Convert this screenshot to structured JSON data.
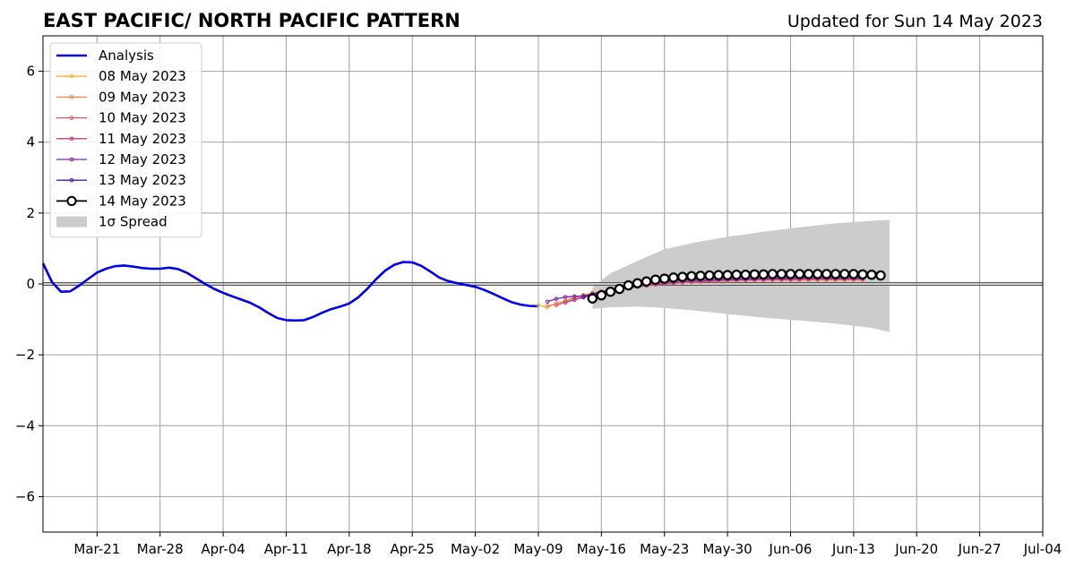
{
  "chart_data": {
    "type": "line",
    "title": "EAST PACIFIC/ NORTH PACIFIC PATTERN",
    "subtitle": "Updated for Sun 14 May 2023",
    "xlabel": "",
    "ylabel": "",
    "x_axis": {
      "start": "2023-03-15",
      "end": "2023-07-04",
      "ticks": [
        "2023-03-21",
        "2023-03-28",
        "2023-04-04",
        "2023-04-11",
        "2023-04-18",
        "2023-04-25",
        "2023-05-02",
        "2023-05-09",
        "2023-05-16",
        "2023-05-23",
        "2023-05-30",
        "2023-06-06",
        "2023-06-13",
        "2023-06-20",
        "2023-06-27",
        "2023-07-04"
      ],
      "tick_labels": [
        "Mar-21",
        "Mar-28",
        "Apr-04",
        "Apr-11",
        "Apr-18",
        "Apr-25",
        "May-02",
        "May-09",
        "May-16",
        "May-23",
        "May-30",
        "Jun-06",
        "Jun-13",
        "Jun-20",
        "Jun-27",
        "Jul-04"
      ]
    },
    "y_axis": {
      "range": [
        -7,
        7
      ],
      "ticks": [
        -6,
        -4,
        -2,
        0,
        2,
        4,
        6
      ],
      "tick_labels": [
        "−6",
        "−4",
        "−2",
        "0",
        "2",
        "4",
        "6"
      ]
    },
    "grid": true,
    "legend_placement": "top-left",
    "analysis": {
      "name": "Analysis",
      "color": "#0000ee",
      "points": [
        [
          "2023-03-15",
          0.58
        ],
        [
          "2023-03-16",
          0.05
        ],
        [
          "2023-03-17",
          -0.22
        ],
        [
          "2023-03-18",
          -0.21
        ],
        [
          "2023-03-19",
          -0.05
        ],
        [
          "2023-03-20",
          0.14
        ],
        [
          "2023-03-21",
          0.32
        ],
        [
          "2023-03-22",
          0.43
        ],
        [
          "2023-03-23",
          0.5
        ],
        [
          "2023-03-24",
          0.52
        ],
        [
          "2023-03-25",
          0.49
        ],
        [
          "2023-03-26",
          0.45
        ],
        [
          "2023-03-27",
          0.43
        ],
        [
          "2023-03-28",
          0.43
        ],
        [
          "2023-03-29",
          0.46
        ],
        [
          "2023-03-30",
          0.42
        ],
        [
          "2023-03-31",
          0.31
        ],
        [
          "2023-04-01",
          0.16
        ],
        [
          "2023-04-02",
          0.0
        ],
        [
          "2023-04-03",
          -0.14
        ],
        [
          "2023-04-04",
          -0.25
        ],
        [
          "2023-04-05",
          -0.35
        ],
        [
          "2023-04-06",
          -0.44
        ],
        [
          "2023-04-07",
          -0.53
        ],
        [
          "2023-04-08",
          -0.66
        ],
        [
          "2023-04-09",
          -0.82
        ],
        [
          "2023-04-10",
          -0.96
        ],
        [
          "2023-04-11",
          -1.02
        ],
        [
          "2023-04-12",
          -1.03
        ],
        [
          "2023-04-13",
          -1.02
        ],
        [
          "2023-04-14",
          -0.93
        ],
        [
          "2023-04-15",
          -0.81
        ],
        [
          "2023-04-16",
          -0.71
        ],
        [
          "2023-04-17",
          -0.64
        ],
        [
          "2023-04-18",
          -0.55
        ],
        [
          "2023-04-19",
          -0.38
        ],
        [
          "2023-04-20",
          -0.14
        ],
        [
          "2023-04-21",
          0.14
        ],
        [
          "2023-04-22",
          0.38
        ],
        [
          "2023-04-23",
          0.54
        ],
        [
          "2023-04-24",
          0.62
        ],
        [
          "2023-04-25",
          0.61
        ],
        [
          "2023-04-26",
          0.51
        ],
        [
          "2023-04-27",
          0.35
        ],
        [
          "2023-04-28",
          0.18
        ],
        [
          "2023-04-29",
          0.08
        ],
        [
          "2023-04-30",
          0.02
        ],
        [
          "2023-05-01",
          -0.03
        ],
        [
          "2023-05-02",
          -0.08
        ],
        [
          "2023-05-03",
          -0.17
        ],
        [
          "2023-05-04",
          -0.28
        ],
        [
          "2023-05-05",
          -0.4
        ],
        [
          "2023-05-06",
          -0.51
        ],
        [
          "2023-05-07",
          -0.58
        ],
        [
          "2023-05-08",
          -0.62
        ],
        [
          "2023-05-09",
          -0.63
        ]
      ]
    },
    "forecasts": [
      {
        "name": "08 May 2023",
        "color": "#f4b43a",
        "start": "2023-05-09",
        "values": [
          -0.6,
          -0.66,
          -0.55,
          -0.47,
          -0.38,
          -0.31,
          -0.25,
          -0.2,
          -0.16,
          -0.12,
          -0.08,
          -0.05,
          -0.02,
          0.0,
          0.02,
          0.04,
          0.05,
          0.06,
          0.07,
          0.08,
          0.09,
          0.09,
          0.1,
          0.1,
          0.1,
          0.11,
          0.11,
          0.11,
          0.11,
          0.11,
          0.11,
          0.11,
          0.11,
          0.11,
          0.11,
          0.11,
          0.11
        ]
      },
      {
        "name": "09 May 2023",
        "color": "#f08a4b",
        "start": "2023-05-10",
        "values": [
          -0.62,
          -0.56,
          -0.48,
          -0.4,
          -0.33,
          -0.27,
          -0.22,
          -0.18,
          -0.14,
          -0.1,
          -0.07,
          -0.04,
          -0.02,
          0.0,
          0.02,
          0.04,
          0.05,
          0.06,
          0.07,
          0.08,
          0.09,
          0.09,
          0.1,
          0.1,
          0.11,
          0.11,
          0.11,
          0.11,
          0.11,
          0.12,
          0.12,
          0.12,
          0.12,
          0.12,
          0.12,
          0.12
        ]
      },
      {
        "name": "10 May 2023",
        "color": "#e05a6a",
        "start": "2023-05-11",
        "values": [
          -0.6,
          -0.52,
          -0.44,
          -0.37,
          -0.3,
          -0.24,
          -0.19,
          -0.15,
          -0.11,
          -0.08,
          -0.05,
          -0.02,
          0.0,
          0.02,
          0.04,
          0.06,
          0.07,
          0.08,
          0.09,
          0.1,
          0.1,
          0.11,
          0.11,
          0.12,
          0.12,
          0.12,
          0.12,
          0.13,
          0.13,
          0.13,
          0.13,
          0.13,
          0.13,
          0.13,
          0.13
        ]
      },
      {
        "name": "11 May 2023",
        "color": "#b83c8f",
        "start": "2023-05-12",
        "values": [
          -0.52,
          -0.45,
          -0.38,
          -0.31,
          -0.25,
          -0.2,
          -0.15,
          -0.11,
          -0.07,
          -0.04,
          -0.01,
          0.01,
          0.03,
          0.05,
          0.07,
          0.08,
          0.09,
          0.1,
          0.11,
          0.12,
          0.12,
          0.13,
          0.13,
          0.14,
          0.14,
          0.14,
          0.14,
          0.15,
          0.15,
          0.15,
          0.15,
          0.15,
          0.15,
          0.15
        ]
      },
      {
        "name": "12 May 2023",
        "color": "#8a1fb0",
        "start": "2023-05-10",
        "values": [
          -0.5,
          -0.42,
          -0.37,
          -0.35,
          -0.34,
          -0.28,
          -0.22,
          -0.16,
          -0.11,
          -0.07,
          -0.03,
          0.0,
          0.03,
          0.05,
          0.07,
          0.09,
          0.1,
          0.11,
          0.12,
          0.13,
          0.14,
          0.14,
          0.15,
          0.15,
          0.16,
          0.16,
          0.16,
          0.16,
          0.17,
          0.17,
          0.17,
          0.17,
          0.17,
          0.17,
          0.17,
          0.17
        ]
      },
      {
        "name": "13 May 2023",
        "color": "#4b1a8f",
        "start": "2023-05-14",
        "values": [
          -0.37,
          -0.3,
          -0.23,
          -0.16,
          -0.1,
          -0.05,
          -0.01,
          0.03,
          0.06,
          0.09,
          0.11,
          0.13,
          0.14,
          0.16,
          0.17,
          0.18,
          0.19,
          0.19,
          0.2,
          0.2,
          0.21,
          0.21,
          0.21,
          0.21,
          0.22,
          0.22,
          0.22,
          0.22,
          0.22,
          0.22,
          0.22,
          0.22
        ]
      },
      {
        "name": "14 May 2023",
        "color": "#000000",
        "start": "2023-05-15",
        "values": [
          -0.41,
          -0.32,
          -0.22,
          -0.14,
          -0.04,
          0.02,
          0.07,
          0.12,
          0.15,
          0.18,
          0.2,
          0.22,
          0.23,
          0.24,
          0.25,
          0.25,
          0.26,
          0.26,
          0.27,
          0.27,
          0.28,
          0.28,
          0.28,
          0.28,
          0.28,
          0.28,
          0.28,
          0.28,
          0.28,
          0.28,
          0.27,
          0.26,
          0.24
        ]
      }
    ],
    "spread": {
      "name": "1σ Spread",
      "color": "#cccccc",
      "points": [
        [
          "2023-05-15",
          -0.7,
          -0.1
        ],
        [
          "2023-05-17",
          -0.66,
          0.3
        ],
        [
          "2023-05-20",
          -0.64,
          0.65
        ],
        [
          "2023-05-23",
          -0.68,
          0.98
        ],
        [
          "2023-05-26",
          -0.74,
          1.15
        ],
        [
          "2023-05-30",
          -0.85,
          1.33
        ],
        [
          "2023-06-03",
          -0.95,
          1.47
        ],
        [
          "2023-06-07",
          -1.03,
          1.6
        ],
        [
          "2023-06-11",
          -1.12,
          1.71
        ],
        [
          "2023-06-15",
          -1.24,
          1.78
        ],
        [
          "2023-06-17",
          -1.36,
          1.81
        ]
      ]
    }
  }
}
